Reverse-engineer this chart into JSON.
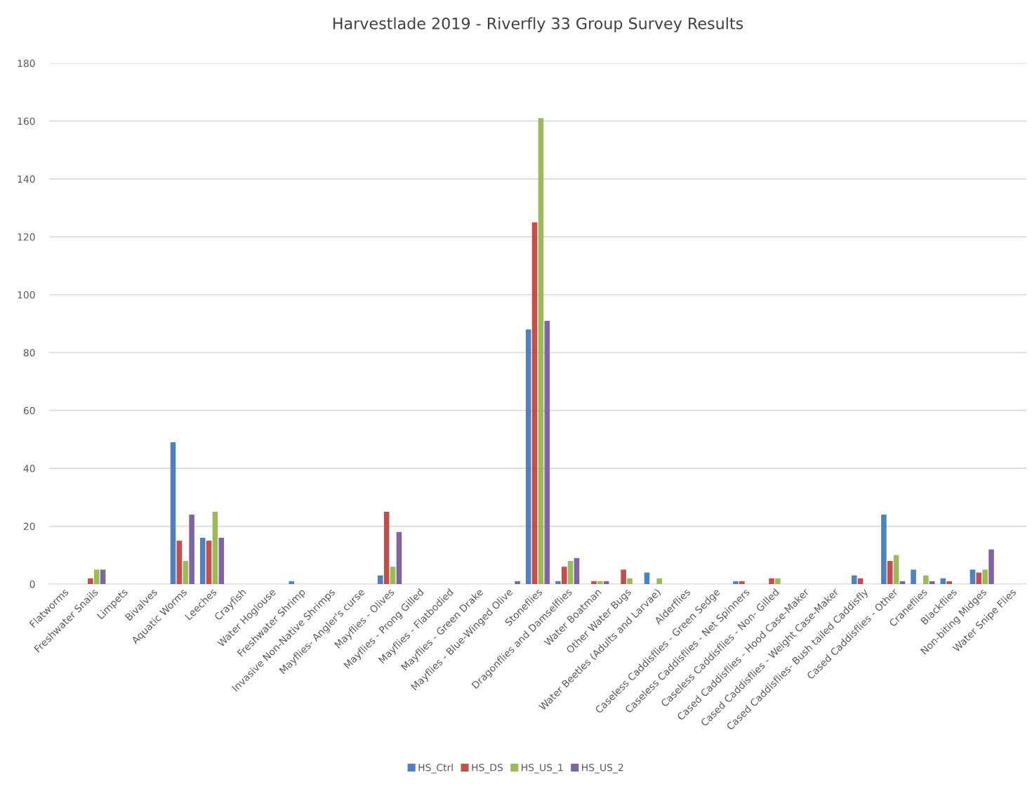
{
  "chart_data": {
    "type": "bar",
    "title": "Harvestlade 2019 - Riverfly 33 Group Survey Results",
    "categories": [
      "Flatworms",
      "Freshwater Snails",
      "Limpets",
      "Bivalves",
      "Aquatic Worms",
      "Leeches",
      "Crayfish",
      "Water Hoglouse",
      "Freshwater Shrimp",
      "Invasive Non-Native Shrimps",
      "Mayflies- Angler's curse",
      "Mayflies - Olives",
      "Mayflies - Prong Gilled",
      "Mayflies - Flatbodied",
      "Mayflies - Green Drake",
      "Mayflies - Blue-Winged Olive",
      "Stoneflies",
      "Dragonflies and Damselflies",
      "Water Boatman",
      "Other Water Bugs",
      "Water Beetles (Adults and Larvae)",
      "Alderflies",
      "Caseless Caddisflies - Green Sedge",
      "Caseless Caddisflies - Net Spinners",
      "Caseless Caddisflies - Non- Gilled",
      "Cased Caddisflies - Hood Case-Maker",
      "Cased Caddisflies - Weight Case-Maker",
      "Cased Caddisflies- Bush tailed Caddisfly",
      "Cased Caddisflies - Other",
      "Craneflies",
      "Blackflies",
      "Non-biting Midges",
      "Water Snipe Flies"
    ],
    "series": [
      {
        "name": "HS_Ctrl",
        "color": "#4f81bd",
        "values": [
          0,
          0,
          0,
          0,
          49,
          16,
          0,
          0,
          1,
          0,
          0,
          3,
          0,
          0,
          0,
          0,
          88,
          1,
          0,
          0,
          4,
          0,
          0,
          1,
          0,
          0,
          0,
          3,
          24,
          5,
          2,
          5,
          0
        ]
      },
      {
        "name": "HS_DS",
        "color": "#c0504d",
        "values": [
          0,
          2,
          0,
          0,
          15,
          15,
          0,
          0,
          0,
          0,
          0,
          25,
          0,
          0,
          0,
          0,
          125,
          6,
          1,
          5,
          0,
          0,
          0,
          1,
          2,
          0,
          0,
          2,
          8,
          0,
          1,
          4,
          0
        ]
      },
      {
        "name": "HS_US_1",
        "color": "#9bbb59",
        "values": [
          0,
          5,
          0,
          0,
          8,
          25,
          0,
          0,
          0,
          0,
          0,
          6,
          0,
          0,
          0,
          0,
          161,
          8,
          1,
          2,
          2,
          0,
          0,
          0,
          2,
          0,
          0,
          0,
          10,
          3,
          0,
          5,
          0
        ]
      },
      {
        "name": "HS_US_2",
        "color": "#8064a2",
        "values": [
          0,
          5,
          0,
          0,
          24,
          16,
          0,
          0,
          0,
          0,
          0,
          18,
          0,
          0,
          0,
          1,
          91,
          9,
          1,
          0,
          0,
          0,
          0,
          0,
          0,
          0,
          0,
          0,
          1,
          1,
          0,
          12,
          0
        ]
      }
    ],
    "ylim": [
      0,
      180
    ],
    "yticks": [
      0,
      20,
      40,
      60,
      80,
      100,
      120,
      140,
      160,
      180
    ],
    "grid": "y",
    "legend": "bottom"
  }
}
